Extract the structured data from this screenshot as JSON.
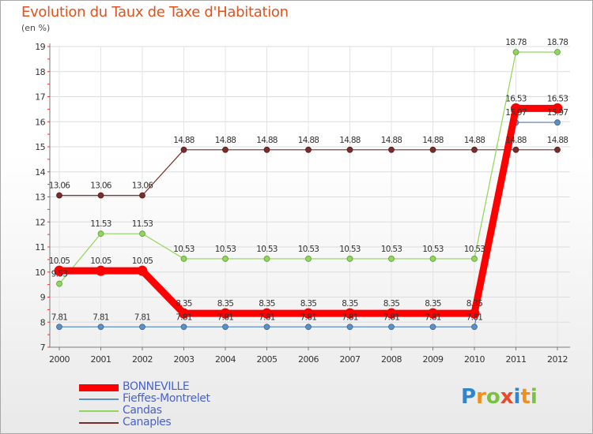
{
  "title": "Evolution du Taux de Taxe d'Habitation",
  "unit_label": "(en %)",
  "logo_text": "Proxiti",
  "chart_data": {
    "type": "line",
    "title": "Evolution du Taux de Taxe d'Habitation",
    "ylabel": "(en %)",
    "xlabel": "",
    "x": [
      "2000",
      "2001",
      "2002",
      "2003",
      "2004",
      "2005",
      "2006",
      "2007",
      "2008",
      "2009",
      "2010",
      "2011",
      "2012"
    ],
    "ylim": [
      7,
      19
    ],
    "yticks": [
      "7",
      "8",
      "9",
      "10",
      "11",
      "12",
      "13",
      "14",
      "15",
      "16",
      "17",
      "18",
      "19"
    ],
    "legend_position": "bottom-left",
    "series": [
      {
        "name": "BONNEVILLE",
        "color": "#ff0000",
        "values": [
          10.05,
          10.05,
          10.05,
          8.35,
          8.35,
          8.35,
          8.35,
          8.35,
          8.35,
          8.35,
          8.35,
          16.53,
          16.53
        ],
        "labels": [
          "10.05",
          "10.05",
          "10.05",
          "8.35",
          "8.35",
          "8.35",
          "8.35",
          "8.35",
          "8.35",
          "8.35",
          "8.35",
          "16.53",
          "16.53"
        ]
      },
      {
        "name": "Fieffes-Montrelet",
        "color": "#5b8fc7",
        "values": [
          7.81,
          7.81,
          7.81,
          7.81,
          7.81,
          7.81,
          7.81,
          7.81,
          7.81,
          7.81,
          7.81,
          15.97,
          15.97
        ],
        "labels": [
          "7.81",
          "7.81",
          "7.81",
          "7.81",
          "7.81",
          "7.81",
          "7.81",
          "7.81",
          "7.81",
          "7.81",
          "7.81",
          "15.97",
          "15.97"
        ]
      },
      {
        "name": "Candas",
        "color": "#8fd65a",
        "values": [
          9.53,
          11.53,
          11.53,
          10.53,
          10.53,
          10.53,
          10.53,
          10.53,
          10.53,
          10.53,
          10.53,
          18.78,
          18.78
        ],
        "labels": [
          "9.53",
          "11.53",
          "11.53",
          "10.53",
          "10.53",
          "10.53",
          "10.53",
          "10.53",
          "10.53",
          "10.53",
          "10.53",
          "18.78",
          "18.78"
        ]
      },
      {
        "name": "Canaples",
        "color": "#7a2b2b",
        "values": [
          13.06,
          13.06,
          13.06,
          14.88,
          14.88,
          14.88,
          14.88,
          14.88,
          14.88,
          14.88,
          14.88,
          14.88,
          14.88
        ],
        "labels": [
          "13.06",
          "13.06",
          "13.06",
          "14.88",
          "14.88",
          "14.88",
          "14.88",
          "14.88",
          "14.88",
          "14.88",
          "14.88",
          "14.88",
          "14.88"
        ]
      }
    ]
  }
}
